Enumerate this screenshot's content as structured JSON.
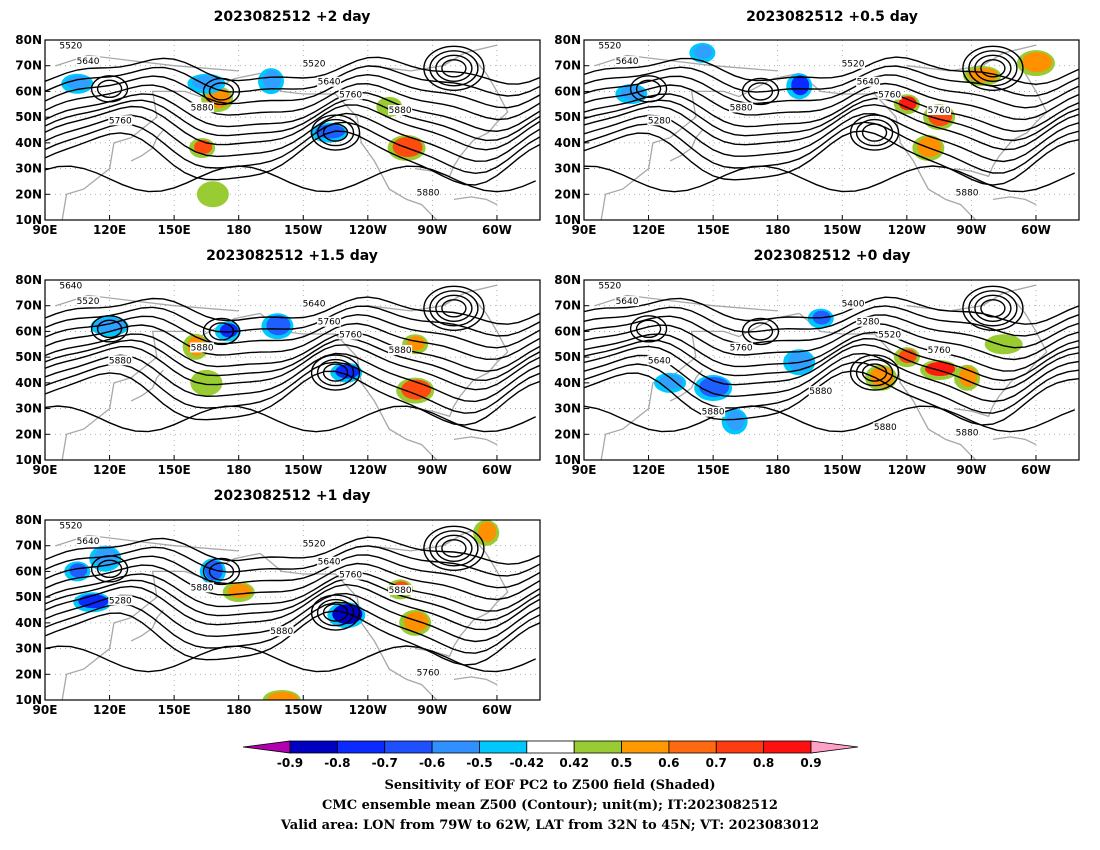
{
  "panels": [
    {
      "title": "2023082512 +2 day",
      "contour_labels": [
        "5520",
        "5640",
        "5520",
        "5640",
        "5760",
        "5760",
        "5880",
        "5880",
        "5880"
      ],
      "sensitivity_patches": [
        {
          "lon": 163,
          "lat": 38,
          "value": 0.7
        },
        {
          "lon": 170,
          "lat": 57,
          "value": 0.6
        },
        {
          "lon": 165,
          "lat": 63,
          "value": -0.5
        },
        {
          "lon": 195,
          "lat": 64,
          "value": -0.5
        },
        {
          "lon": 105,
          "lat": 63,
          "value": -0.5
        },
        {
          "lon": 258,
          "lat": 38,
          "value": 0.7
        },
        {
          "lon": 250,
          "lat": 54,
          "value": 0.5
        },
        {
          "lon": 168,
          "lat": 20,
          "value": 0.5
        },
        {
          "lon": 222,
          "lat": 44,
          "value": -0.6
        }
      ]
    },
    {
      "title": "2023082512 +0.5 day",
      "contour_labels": [
        "5520",
        "5640",
        "5520",
        "5640",
        "5760",
        "5280",
        "5880",
        "5760",
        "5880"
      ],
      "sensitivity_patches": [
        {
          "lon": 240,
          "lat": 55,
          "value": 0.8
        },
        {
          "lon": 255,
          "lat": 50,
          "value": 0.7
        },
        {
          "lon": 275,
          "lat": 66,
          "value": 0.6
        },
        {
          "lon": 190,
          "lat": 62,
          "value": -0.7
        },
        {
          "lon": 112,
          "lat": 59,
          "value": -0.5
        },
        {
          "lon": 300,
          "lat": 71,
          "value": 0.6
        },
        {
          "lon": 145,
          "lat": 75,
          "value": -0.5
        },
        {
          "lon": 250,
          "lat": 38,
          "value": 0.6
        }
      ]
    },
    {
      "title": "2023082512 +1.5 day",
      "contour_labels": [
        "5640",
        "5520",
        "5640",
        "5760",
        "5760",
        "5880",
        "5880",
        "5880"
      ],
      "sensitivity_patches": [
        {
          "lon": 175,
          "lat": 60,
          "value": -0.7
        },
        {
          "lon": 198,
          "lat": 62,
          "value": -0.6
        },
        {
          "lon": 120,
          "lat": 62,
          "value": -0.5
        },
        {
          "lon": 160,
          "lat": 54,
          "value": 0.6
        },
        {
          "lon": 230,
          "lat": 44,
          "value": -0.7
        },
        {
          "lon": 262,
          "lat": 37,
          "value": 0.7
        },
        {
          "lon": 262,
          "lat": 55,
          "value": 0.6
        },
        {
          "lon": 165,
          "lat": 40,
          "value": 0.5
        }
      ]
    },
    {
      "title": "2023082512 +0 day",
      "contour_labels": [
        "5520",
        "5640",
        "5400",
        "5280",
        "5520",
        "5640",
        "5760",
        "5760",
        "5880",
        "5880",
        "5880",
        "5880"
      ],
      "sensitivity_patches": [
        {
          "lon": 240,
          "lat": 50,
          "value": 0.7
        },
        {
          "lon": 228,
          "lat": 42,
          "value": 0.6
        },
        {
          "lon": 255,
          "lat": 45,
          "value": 0.8
        },
        {
          "lon": 268,
          "lat": 42,
          "value": 0.6
        },
        {
          "lon": 130,
          "lat": 40,
          "value": -0.5
        },
        {
          "lon": 150,
          "lat": 38,
          "value": -0.6
        },
        {
          "lon": 200,
          "lat": 65,
          "value": -0.6
        },
        {
          "lon": 190,
          "lat": 48,
          "value": -0.5
        },
        {
          "lon": 285,
          "lat": 55,
          "value": 0.5
        },
        {
          "lon": 160,
          "lat": 25,
          "value": -0.5
        }
      ]
    },
    {
      "title": "2023082512 +1 day",
      "contour_labels": [
        "5520",
        "5640",
        "5520",
        "5640",
        "5760",
        "5280",
        "5880",
        "5880",
        "5760",
        "5880"
      ],
      "sensitivity_patches": [
        {
          "lon": 105,
          "lat": 60,
          "value": -0.6
        },
        {
          "lon": 118,
          "lat": 65,
          "value": -0.5
        },
        {
          "lon": 112,
          "lat": 48,
          "value": -0.7
        },
        {
          "lon": 168,
          "lat": 60,
          "value": -0.6
        },
        {
          "lon": 180,
          "lat": 52,
          "value": 0.6
        },
        {
          "lon": 230,
          "lat": 43,
          "value": -0.8
        },
        {
          "lon": 255,
          "lat": 53,
          "value": 0.7
        },
        {
          "lon": 262,
          "lat": 40,
          "value": 0.6
        },
        {
          "lon": 200,
          "lat": 10,
          "value": 0.6
        },
        {
          "lon": 295,
          "lat": 75,
          "value": 0.6
        }
      ]
    }
  ],
  "axes": {
    "lon_ticks": [
      "90E",
      "120E",
      "150E",
      "180",
      "150W",
      "120W",
      "90W",
      "60W"
    ],
    "lat_ticks": [
      "80N",
      "70N",
      "60N",
      "50N",
      "40N",
      "30N",
      "20N",
      "10N"
    ],
    "lon_range": [
      90,
      320
    ],
    "lat_range": [
      10,
      80
    ]
  },
  "colorbar": {
    "ticks": [
      "-0.9",
      "-0.8",
      "-0.7",
      "-0.6",
      "-0.5",
      "-0.42",
      "0.42",
      "0.5",
      "0.6",
      "0.7",
      "0.8",
      "0.9"
    ],
    "colors": [
      "#b000b0",
      "#0000c0",
      "#0a2aff",
      "#1e50ff",
      "#3090ff",
      "#00c8ff",
      "#ffffff",
      "#99cc33",
      "#ff9900",
      "#ff6a10",
      "#ff3c10",
      "#ff1010",
      "#ffa0c8"
    ]
  },
  "caption": {
    "line1": "Sensitivity of EOF PC2 to Z500 field (Shaded)",
    "line2": "CMC ensemble mean Z500 (Contour); unit(m); IT:2023082512",
    "line3": "Valid area: LON from 79W to 62W, LAT from 32N to 45N; VT: 2023083012"
  }
}
